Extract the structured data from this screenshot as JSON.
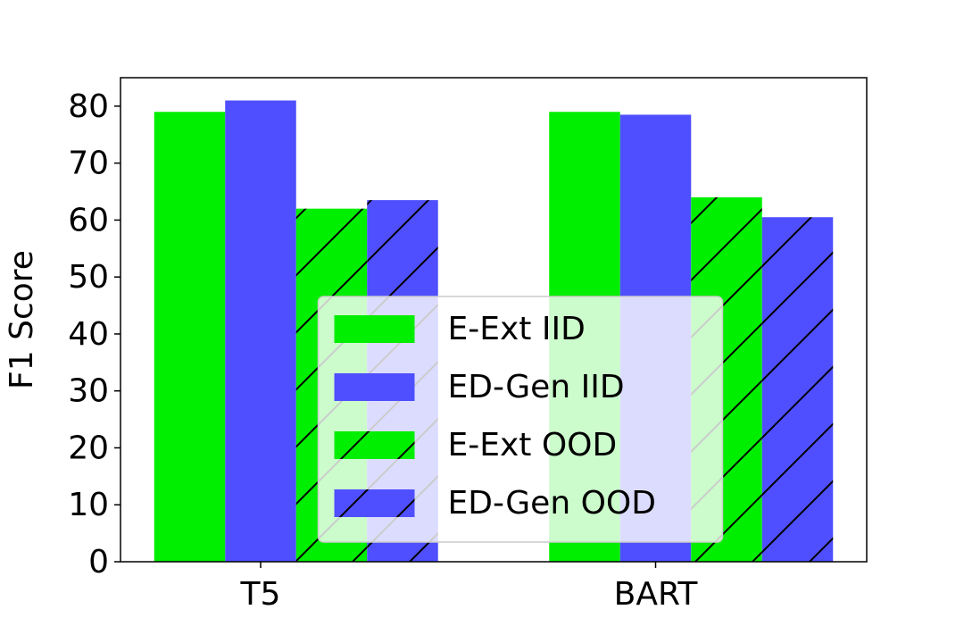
{
  "chart_data": {
    "type": "bar",
    "ylabel": "F1 Score",
    "categories": [
      "T5",
      "BART"
    ],
    "series": [
      {
        "name": "E-Ext IID",
        "color": "#00ee00",
        "values": [
          79,
          79
        ]
      },
      {
        "name": "ED-Gen IID",
        "color": "#4f4fff",
        "values": [
          81,
          78.5
        ]
      },
      {
        "name": "E-Ext OOD",
        "color": "#00ee00",
        "hatch": "/",
        "values": [
          62,
          64
        ]
      },
      {
        "name": "ED-Gen OOD",
        "color": "#4f4fff",
        "hatch": "/",
        "values": [
          63.5,
          60.5
        ]
      }
    ],
    "ylim": [
      0,
      85
    ],
    "yticks": [
      0,
      10,
      20,
      30,
      40,
      50,
      60,
      70,
      80
    ],
    "legend": "lower center"
  }
}
